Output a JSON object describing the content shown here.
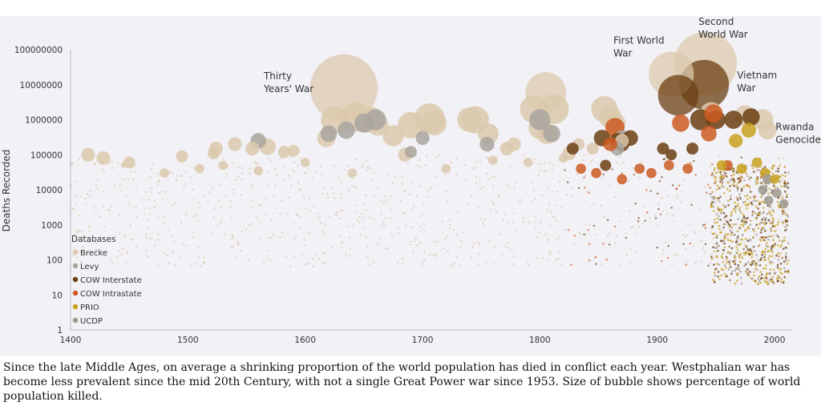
{
  "chart_data": {
    "type": "scatter",
    "ylabel": "Deaths Recorded",
    "yscale": "log",
    "ylim": [
      1,
      100000000
    ],
    "xlim": [
      1400,
      2015
    ],
    "y_ticks": [
      "1",
      "10",
      "100",
      "1000",
      "10000",
      "100000",
      "1000000",
      "10000000",
      "100000000"
    ],
    "x_ticks": [
      "1400",
      "1500",
      "1600",
      "1700",
      "1800",
      "1900",
      "2000"
    ],
    "legend": {
      "title": "Databases",
      "placement": "bottom-left",
      "items": [
        {
          "name": "Brecke",
          "color": "#dcc9ad"
        },
        {
          "name": "Levy",
          "color": "#a9a49d"
        },
        {
          "name": "COW Interstate",
          "color": "#6b3f12"
        },
        {
          "name": "COW Intrastate",
          "color": "#cc5a22"
        },
        {
          "name": "PRIO",
          "color": "#c9a21f"
        },
        {
          "name": "UCDP",
          "color": "#9e9a8f"
        }
      ]
    },
    "annotations": [
      {
        "lines": [
          "Thirty",
          "Years' War"
        ],
        "x": 1633,
        "y": 5000000
      },
      {
        "lines": [
          "First World",
          "War"
        ],
        "x": 1916,
        "y": 20000000
      },
      {
        "lines": [
          "Second",
          "World War"
        ],
        "x": 1942,
        "y": 50000000
      },
      {
        "lines": [
          "Vietnam",
          "War"
        ],
        "x": 1968,
        "y": 1200000
      },
      {
        "lines": [
          "Rwanda",
          "Genocide"
        ],
        "x": 1994,
        "y": 500000
      }
    ],
    "series": [
      {
        "name": "Brecke",
        "points": [
          [
            1415,
            100000,
            1
          ],
          [
            1428,
            80000,
            1
          ],
          [
            1445,
            50000,
            0
          ],
          [
            1450,
            60000,
            0.8
          ],
          [
            1495,
            90000,
            0.8
          ],
          [
            1522,
            110000,
            0.8
          ],
          [
            1524,
            150000,
            1
          ],
          [
            1540,
            200000,
            1
          ],
          [
            1555,
            150000,
            1
          ],
          [
            1568,
            170000,
            1.3
          ],
          [
            1582,
            120000,
            0.8
          ],
          [
            1590,
            130000,
            0.8
          ],
          [
            1618,
            300000,
            1.5
          ],
          [
            1633,
            8000000,
            7
          ],
          [
            1625,
            1000000,
            2.5
          ],
          [
            1643,
            1200000,
            2.8
          ],
          [
            1655,
            1000000,
            2.4
          ],
          [
            1662,
            700000,
            1.8
          ],
          [
            1675,
            350000,
            1.8
          ],
          [
            1690,
            700000,
            2.4
          ],
          [
            1706,
            1100000,
            2.8
          ],
          [
            1710,
            800000,
            2.2
          ],
          [
            1740,
            1000000,
            2.2
          ],
          [
            1745,
            1000000,
            2.5
          ],
          [
            1756,
            400000,
            1.8
          ],
          [
            1795,
            2000000,
            2.6
          ],
          [
            1805,
            6000000,
            4
          ],
          [
            1812,
            2000000,
            2.8
          ],
          [
            1800,
            600000,
            2
          ],
          [
            1806,
            400000,
            1.8
          ],
          [
            1855,
            2000000,
            2.4
          ],
          [
            1860,
            1200000,
            2
          ],
          [
            1864,
            800000,
            1.8
          ],
          [
            1912,
            20000000,
            4.5
          ],
          [
            1941,
            40000000,
            6.5
          ],
          [
            1946,
            1500000,
            2
          ],
          [
            1975,
            1300000,
            1.8
          ],
          [
            1990,
            1000000,
            1.8
          ],
          [
            1994,
            500000,
            1.5
          ],
          [
            1685,
            100000,
            1
          ],
          [
            1772,
            150000,
            1
          ],
          [
            1778,
            200000,
            1
          ],
          [
            1825,
            110000,
            1
          ],
          [
            1833,
            200000,
            0.8
          ],
          [
            1845,
            150000,
            0.8
          ],
          [
            1870,
            250000,
            1
          ],
          [
            1480,
            30000,
            0.5
          ],
          [
            1510,
            40000,
            0.5
          ],
          [
            1530,
            50000,
            0.5
          ],
          [
            1560,
            35000,
            0.5
          ],
          [
            1600,
            60000,
            0.5
          ],
          [
            1640,
            30000,
            0.5
          ],
          [
            1720,
            40000,
            0.5
          ],
          [
            1760,
            70000,
            0.5
          ],
          [
            1790,
            60000,
            0.5
          ],
          [
            1820,
            80000,
            0.5
          ]
        ]
      },
      {
        "name": "Levy",
        "points": [
          [
            1560,
            250000,
            1.2
          ],
          [
            1620,
            400000,
            1.3
          ],
          [
            1635,
            500000,
            1.4
          ],
          [
            1650,
            800000,
            1.6
          ],
          [
            1660,
            1000000,
            1.8
          ],
          [
            1690,
            120000,
            0.8
          ],
          [
            1700,
            300000,
            1
          ],
          [
            1755,
            200000,
            1.1
          ],
          [
            1800,
            1000000,
            1.8
          ],
          [
            1810,
            400000,
            1.4
          ],
          [
            1866,
            150000,
            1
          ],
          [
            1870,
            300000,
            1.2
          ]
        ]
      },
      {
        "name": "COW Interstate",
        "points": [
          [
            1828,
            150000,
            0.8
          ],
          [
            1853,
            300000,
            1.3
          ],
          [
            1866,
            250000,
            1.2
          ],
          [
            1870,
            200000,
            1.1
          ],
          [
            1877,
            300000,
            1.2
          ],
          [
            1918,
            5000000,
            4
          ],
          [
            1940,
            10000000,
            5
          ],
          [
            1937,
            1000000,
            1.8
          ],
          [
            1950,
            1000000,
            1.6
          ],
          [
            1965,
            1000000,
            1.5
          ],
          [
            1980,
            1200000,
            1.4
          ],
          [
            1905,
            150000,
            0.8
          ],
          [
            1912,
            100000,
            0.7
          ],
          [
            1930,
            150000,
            0.8
          ],
          [
            1856,
            50000,
            0.7
          ]
        ]
      },
      {
        "name": "COW Intrastate",
        "points": [
          [
            1864,
            600000,
            1.6
          ],
          [
            1860,
            200000,
            1
          ],
          [
            1920,
            800000,
            1.4
          ],
          [
            1948,
            1500000,
            1.5
          ],
          [
            1944,
            400000,
            1.2
          ],
          [
            1835,
            40000,
            0.6
          ],
          [
            1848,
            30000,
            0.6
          ],
          [
            1870,
            20000,
            0.6
          ],
          [
            1885,
            40000,
            0.6
          ],
          [
            1895,
            30000,
            0.6
          ],
          [
            1910,
            50000,
            0.6
          ],
          [
            1926,
            40000,
            0.6
          ],
          [
            1960,
            50000,
            0.6
          ]
        ]
      },
      {
        "name": "PRIO",
        "points": [
          [
            1967,
            250000,
            1
          ],
          [
            1978,
            500000,
            1.1
          ],
          [
            1985,
            60000,
            0.6
          ],
          [
            1992,
            30000,
            0.6
          ],
          [
            2000,
            20000,
            0.5
          ],
          [
            1955,
            50000,
            0.6
          ],
          [
            1972,
            40000,
            0.6
          ]
        ]
      },
      {
        "name": "UCDP",
        "points": [
          [
            1990,
            10000,
            0.5
          ],
          [
            1995,
            5000,
            0.5
          ],
          [
            2002,
            8000,
            0.5
          ],
          [
            2008,
            4000,
            0.5
          ],
          [
            1994,
            20000,
            0.6
          ]
        ]
      }
    ]
  },
  "caption": "Since the late Middle Ages, on average a shrinking proportion of the world population has died in conflict each year. Westphalian war has become less prevalent since the mid 20th Century, with not a single Great Power war since 1953. Size of bubble shows percentage of world population killed."
}
